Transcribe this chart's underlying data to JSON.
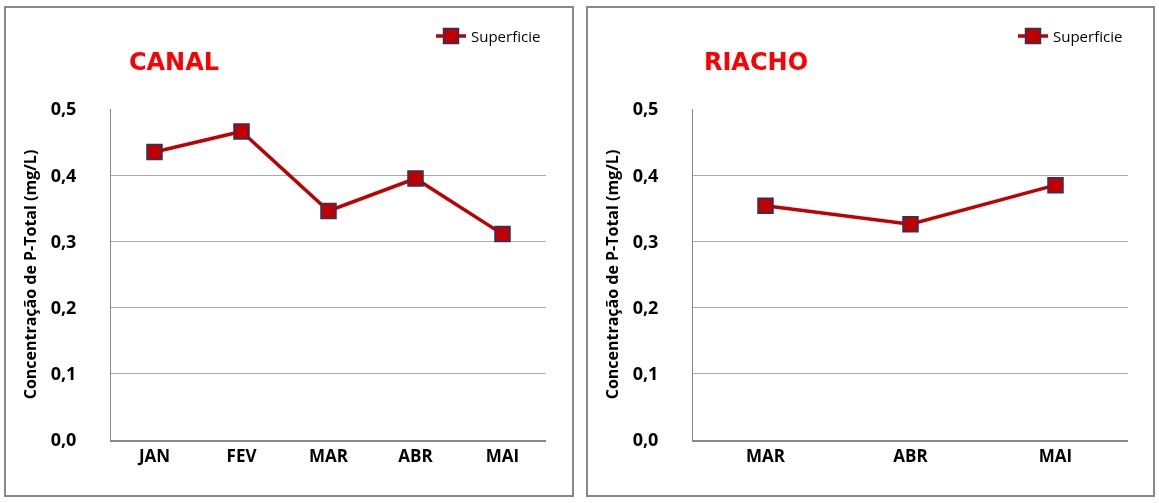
{
  "chart_data": [
    {
      "type": "line",
      "title": "CANAL",
      "ylabel": "Concentração de P-Total (mg/L)",
      "categories": [
        "JAN",
        "FEV",
        "MAR",
        "ABR",
        "MAI"
      ],
      "series": [
        {
          "name": "Superficie",
          "color": "#c00000",
          "values": [
            0.435,
            0.466,
            0.346,
            0.395,
            0.311
          ]
        }
      ],
      "ylim": [
        0,
        0.5
      ],
      "yticks": [
        {
          "value": 0,
          "label": "0,0"
        },
        {
          "value": 0.1,
          "label": "0,1"
        },
        {
          "value": 0.2,
          "label": "0,2"
        },
        {
          "value": 0.3,
          "label": "0,3"
        },
        {
          "value": 0.4,
          "label": "0,4"
        },
        {
          "value": 0.5,
          "label": "0,5"
        }
      ],
      "grid": "y",
      "legend": "top right",
      "marker": "square",
      "line_style": "solid"
    },
    {
      "type": "line",
      "title": "RIACHO",
      "ylabel": "Concentração de P-Total (mg/L)",
      "categories": [
        "MAR",
        "ABR",
        "MAI"
      ],
      "series": [
        {
          "name": "Superficie",
          "color": "#c00000",
          "values": [
            0.354,
            0.326,
            0.385
          ]
        }
      ],
      "ylim": [
        0,
        0.5
      ],
      "yticks": [
        {
          "value": 0,
          "label": "0,0"
        },
        {
          "value": 0.1,
          "label": "0,1"
        },
        {
          "value": 0.2,
          "label": "0,2"
        },
        {
          "value": 0.3,
          "label": "0,3"
        },
        {
          "value": 0.4,
          "label": "0,4"
        },
        {
          "value": 0.5,
          "label": "0,5"
        }
      ],
      "grid": "y",
      "legend": "top right",
      "marker": "square",
      "line_style": "solid"
    }
  ]
}
